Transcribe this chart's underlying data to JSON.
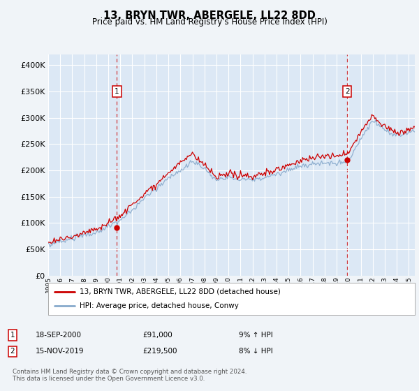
{
  "title": "13, BRYN TWR, ABERGELE, LL22 8DD",
  "subtitle": "Price paid vs. HM Land Registry's House Price Index (HPI)",
  "fig_bg_color": "#f0f4f8",
  "plot_bg_color": "#dce8f5",
  "grid_color": "#ffffff",
  "ylim": [
    0,
    420000
  ],
  "yticks": [
    0,
    50000,
    100000,
    150000,
    200000,
    250000,
    300000,
    350000,
    400000
  ],
  "ytick_labels": [
    "£0",
    "£50K",
    "£100K",
    "£150K",
    "£200K",
    "£250K",
    "£300K",
    "£350K",
    "£400K"
  ],
  "xlim_start": 1995,
  "xlim_end": 2025.5,
  "xtick_years": [
    1995,
    1996,
    1997,
    1998,
    1999,
    2000,
    2001,
    2002,
    2003,
    2004,
    2005,
    2006,
    2007,
    2008,
    2009,
    2010,
    2011,
    2012,
    2013,
    2014,
    2015,
    2016,
    2017,
    2018,
    2019,
    2020,
    2021,
    2022,
    2023,
    2024,
    2025
  ],
  "sale1_x": 2000.72,
  "sale1_y": 91000,
  "sale2_x": 2019.88,
  "sale2_y": 219500,
  "red_line_color": "#cc0000",
  "blue_line_color": "#88aacc",
  "legend_label_red": "13, BRYN TWR, ABERGELE, LL22 8DD (detached house)",
  "legend_label_blue": "HPI: Average price, detached house, Conwy",
  "note1_date": "18-SEP-2000",
  "note1_price": "£91,000",
  "note1_hpi": "9% ↑ HPI",
  "note2_date": "15-NOV-2019",
  "note2_price": "£219,500",
  "note2_hpi": "8% ↓ HPI",
  "footer": "Contains HM Land Registry data © Crown copyright and database right 2024.\nThis data is licensed under the Open Government Licence v3.0."
}
